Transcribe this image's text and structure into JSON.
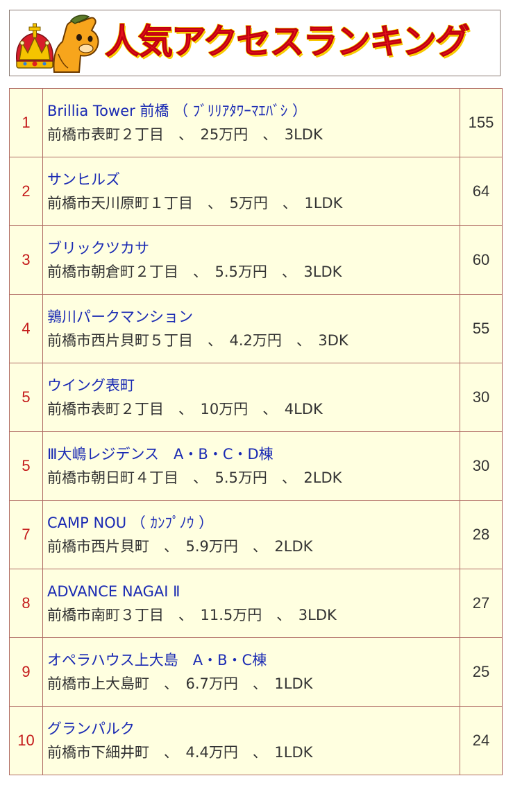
{
  "banner": {
    "title": "人気アクセスランキング",
    "title_color": "#e3131c",
    "outline_color": "#fff200",
    "mascot": "crown-horse-mascot-icon"
  },
  "table": {
    "background": "#ffffe0",
    "border_color": "#b06b64",
    "rank_color": "#c41a1a",
    "name_color": "#1a2ab3",
    "rows": [
      {
        "rank": "1",
        "name": "Brillia Tower 前橋 （ ﾌﾞﾘﾘｱﾀﾜｰﾏｴﾊﾞｼ ）",
        "detail": "前橋市表町２丁目　、　25万円　、　3LDK",
        "count": "155"
      },
      {
        "rank": "2",
        "name": "サンヒルズ",
        "detail": "前橋市天川原町１丁目　、　5万円　、　1LDK",
        "count": "64"
      },
      {
        "rank": "3",
        "name": "ブリックツカサ",
        "detail": "前橋市朝倉町２丁目　、　5.5万円　、　3LDK",
        "count": "60"
      },
      {
        "rank": "4",
        "name": "鶉川パークマンション",
        "detail": "前橋市西片貝町５丁目　、　4.2万円　、　3DK",
        "count": "55"
      },
      {
        "rank": "5",
        "name": "ウイング表町",
        "detail": "前橋市表町２丁目　、　10万円　、　4LDK",
        "count": "30"
      },
      {
        "rank": "5",
        "name": "Ⅲ大嶋レジデンス　A・B・C・D棟",
        "detail": "前橋市朝日町４丁目　、　5.5万円　、　2LDK",
        "count": "30"
      },
      {
        "rank": "7",
        "name": "CAMP NOU （ ｶﾝﾌﾟﾉｳ ）",
        "detail": "前橋市西片貝町　、　5.9万円　、　2LDK",
        "count": "28"
      },
      {
        "rank": "8",
        "name": "ADVANCE NAGAI Ⅱ",
        "detail": "前橋市南町３丁目　、　11.5万円　、　3LDK",
        "count": "27"
      },
      {
        "rank": "9",
        "name": "オペラハウス上大島　A・B・C棟",
        "detail": "前橋市上大島町　、　6.7万円　、　1LDK",
        "count": "25"
      },
      {
        "rank": "10",
        "name": "グランパルク",
        "detail": "前橋市下細井町　、　4.4万円　、　1LDK",
        "count": "24"
      }
    ]
  }
}
